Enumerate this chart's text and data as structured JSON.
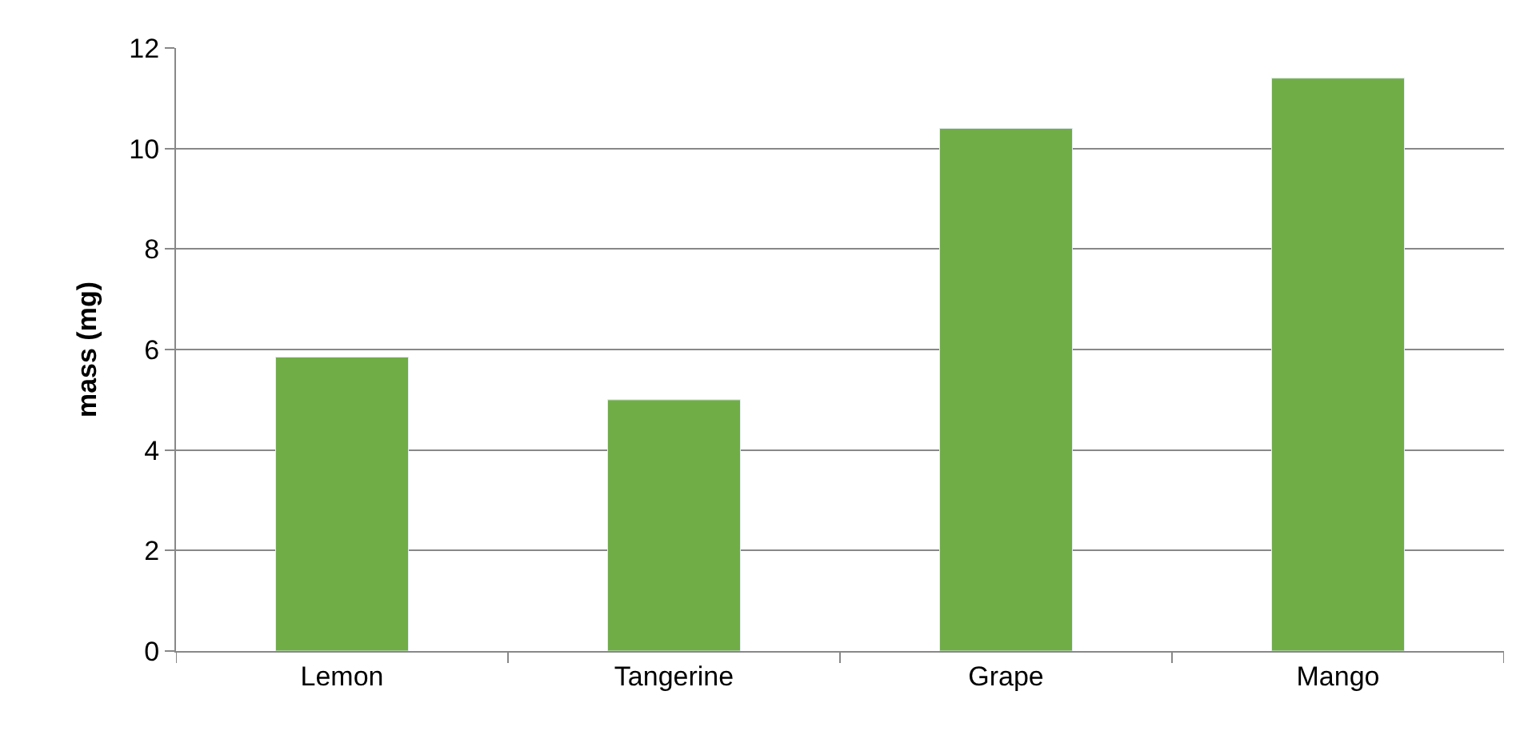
{
  "chart_data": {
    "type": "bar",
    "ylabel": "mass (mg)",
    "categories": [
      "Lemon",
      "Tangerine",
      "Grape",
      "Mango"
    ],
    "values": [
      5.85,
      5.0,
      10.4,
      11.4
    ],
    "color": "#70ad47",
    "ylim": [
      0,
      12
    ],
    "yticks": [
      0,
      2,
      4,
      6,
      8,
      10,
      12
    ],
    "grid": "y",
    "legend": false
  }
}
